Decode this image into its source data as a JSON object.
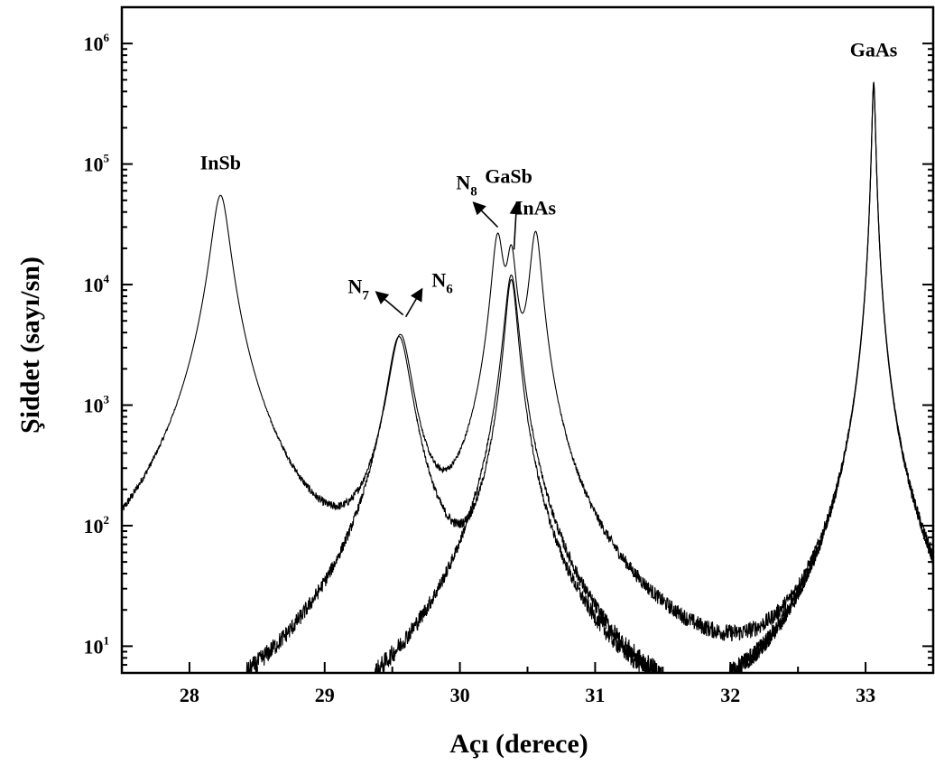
{
  "chart_data": {
    "type": "line",
    "xlabel": "Açı (derece)",
    "ylabel": "Şiddet (sayı/sn)",
    "xlim": [
      27.5,
      33.5
    ],
    "ylim": [
      6,
      2000000
    ],
    "yscale": "log",
    "grid": false,
    "legend": "none",
    "x_ticks": [
      "28",
      "29",
      "30",
      "31",
      "32",
      "33"
    ],
    "y_ticks": [
      {
        "base": "10",
        "exp": "1"
      },
      {
        "base": "10",
        "exp": "2"
      },
      {
        "base": "10",
        "exp": "3"
      },
      {
        "base": "10",
        "exp": "4"
      },
      {
        "base": "10",
        "exp": "5"
      },
      {
        "base": "10",
        "exp": "6"
      }
    ],
    "series": [
      {
        "peaks": [
          {
            "x": 28.23,
            "y": 55000,
            "w": 0.06
          },
          {
            "x": 29.56,
            "y": 3800,
            "w": 0.075
          },
          {
            "x": 30.28,
            "y": 25000,
            "w": 0.04
          },
          {
            "x": 30.38,
            "y": 18000,
            "w": 0.035
          },
          {
            "x": 30.56,
            "y": 27000,
            "w": 0.04
          },
          {
            "x": 33.06,
            "y": 480000,
            "w": 0.012
          }
        ]
      },
      {
        "peaks": [
          {
            "x": 29.55,
            "y": 3700,
            "w": 0.075
          },
          {
            "x": 30.38,
            "y": 11000,
            "w": 0.04
          },
          {
            "x": 33.06,
            "y": 450000,
            "w": 0.012
          }
        ]
      },
      {
        "peaks": [
          {
            "x": 30.38,
            "y": 12000,
            "w": 0.045
          },
          {
            "x": 33.06,
            "y": 460000,
            "w": 0.012
          }
        ]
      }
    ],
    "annotations": [
      {
        "text": "InSb",
        "sub": "",
        "x": 28.23,
        "y": 90000
      },
      {
        "text": "N",
        "sub": "7",
        "x": 29.25,
        "y": 8500
      },
      {
        "text": "N",
        "sub": "6",
        "x": 29.87,
        "y": 9600
      },
      {
        "text": "N",
        "sub": "8",
        "x": 30.05,
        "y": 62000
      },
      {
        "text": "GaSb",
        "sub": "",
        "x": 30.36,
        "y": 70000
      },
      {
        "text": "InAs",
        "sub": "",
        "x": 30.56,
        "y": 38000
      },
      {
        "text": "GaAs",
        "sub": "",
        "x": 33.06,
        "y": 780000
      }
    ],
    "arrows": [
      {
        "from": [
          29.58,
          5600
        ],
        "to": [
          29.38,
          8700
        ]
      },
      {
        "from": [
          29.6,
          5400
        ],
        "to": [
          29.72,
          9200
        ]
      },
      {
        "from": [
          30.28,
          30000
        ],
        "to": [
          30.1,
          48000
        ]
      },
      {
        "from": [
          30.4,
          19500
        ],
        "to": [
          30.42,
          48000
        ]
      }
    ]
  }
}
